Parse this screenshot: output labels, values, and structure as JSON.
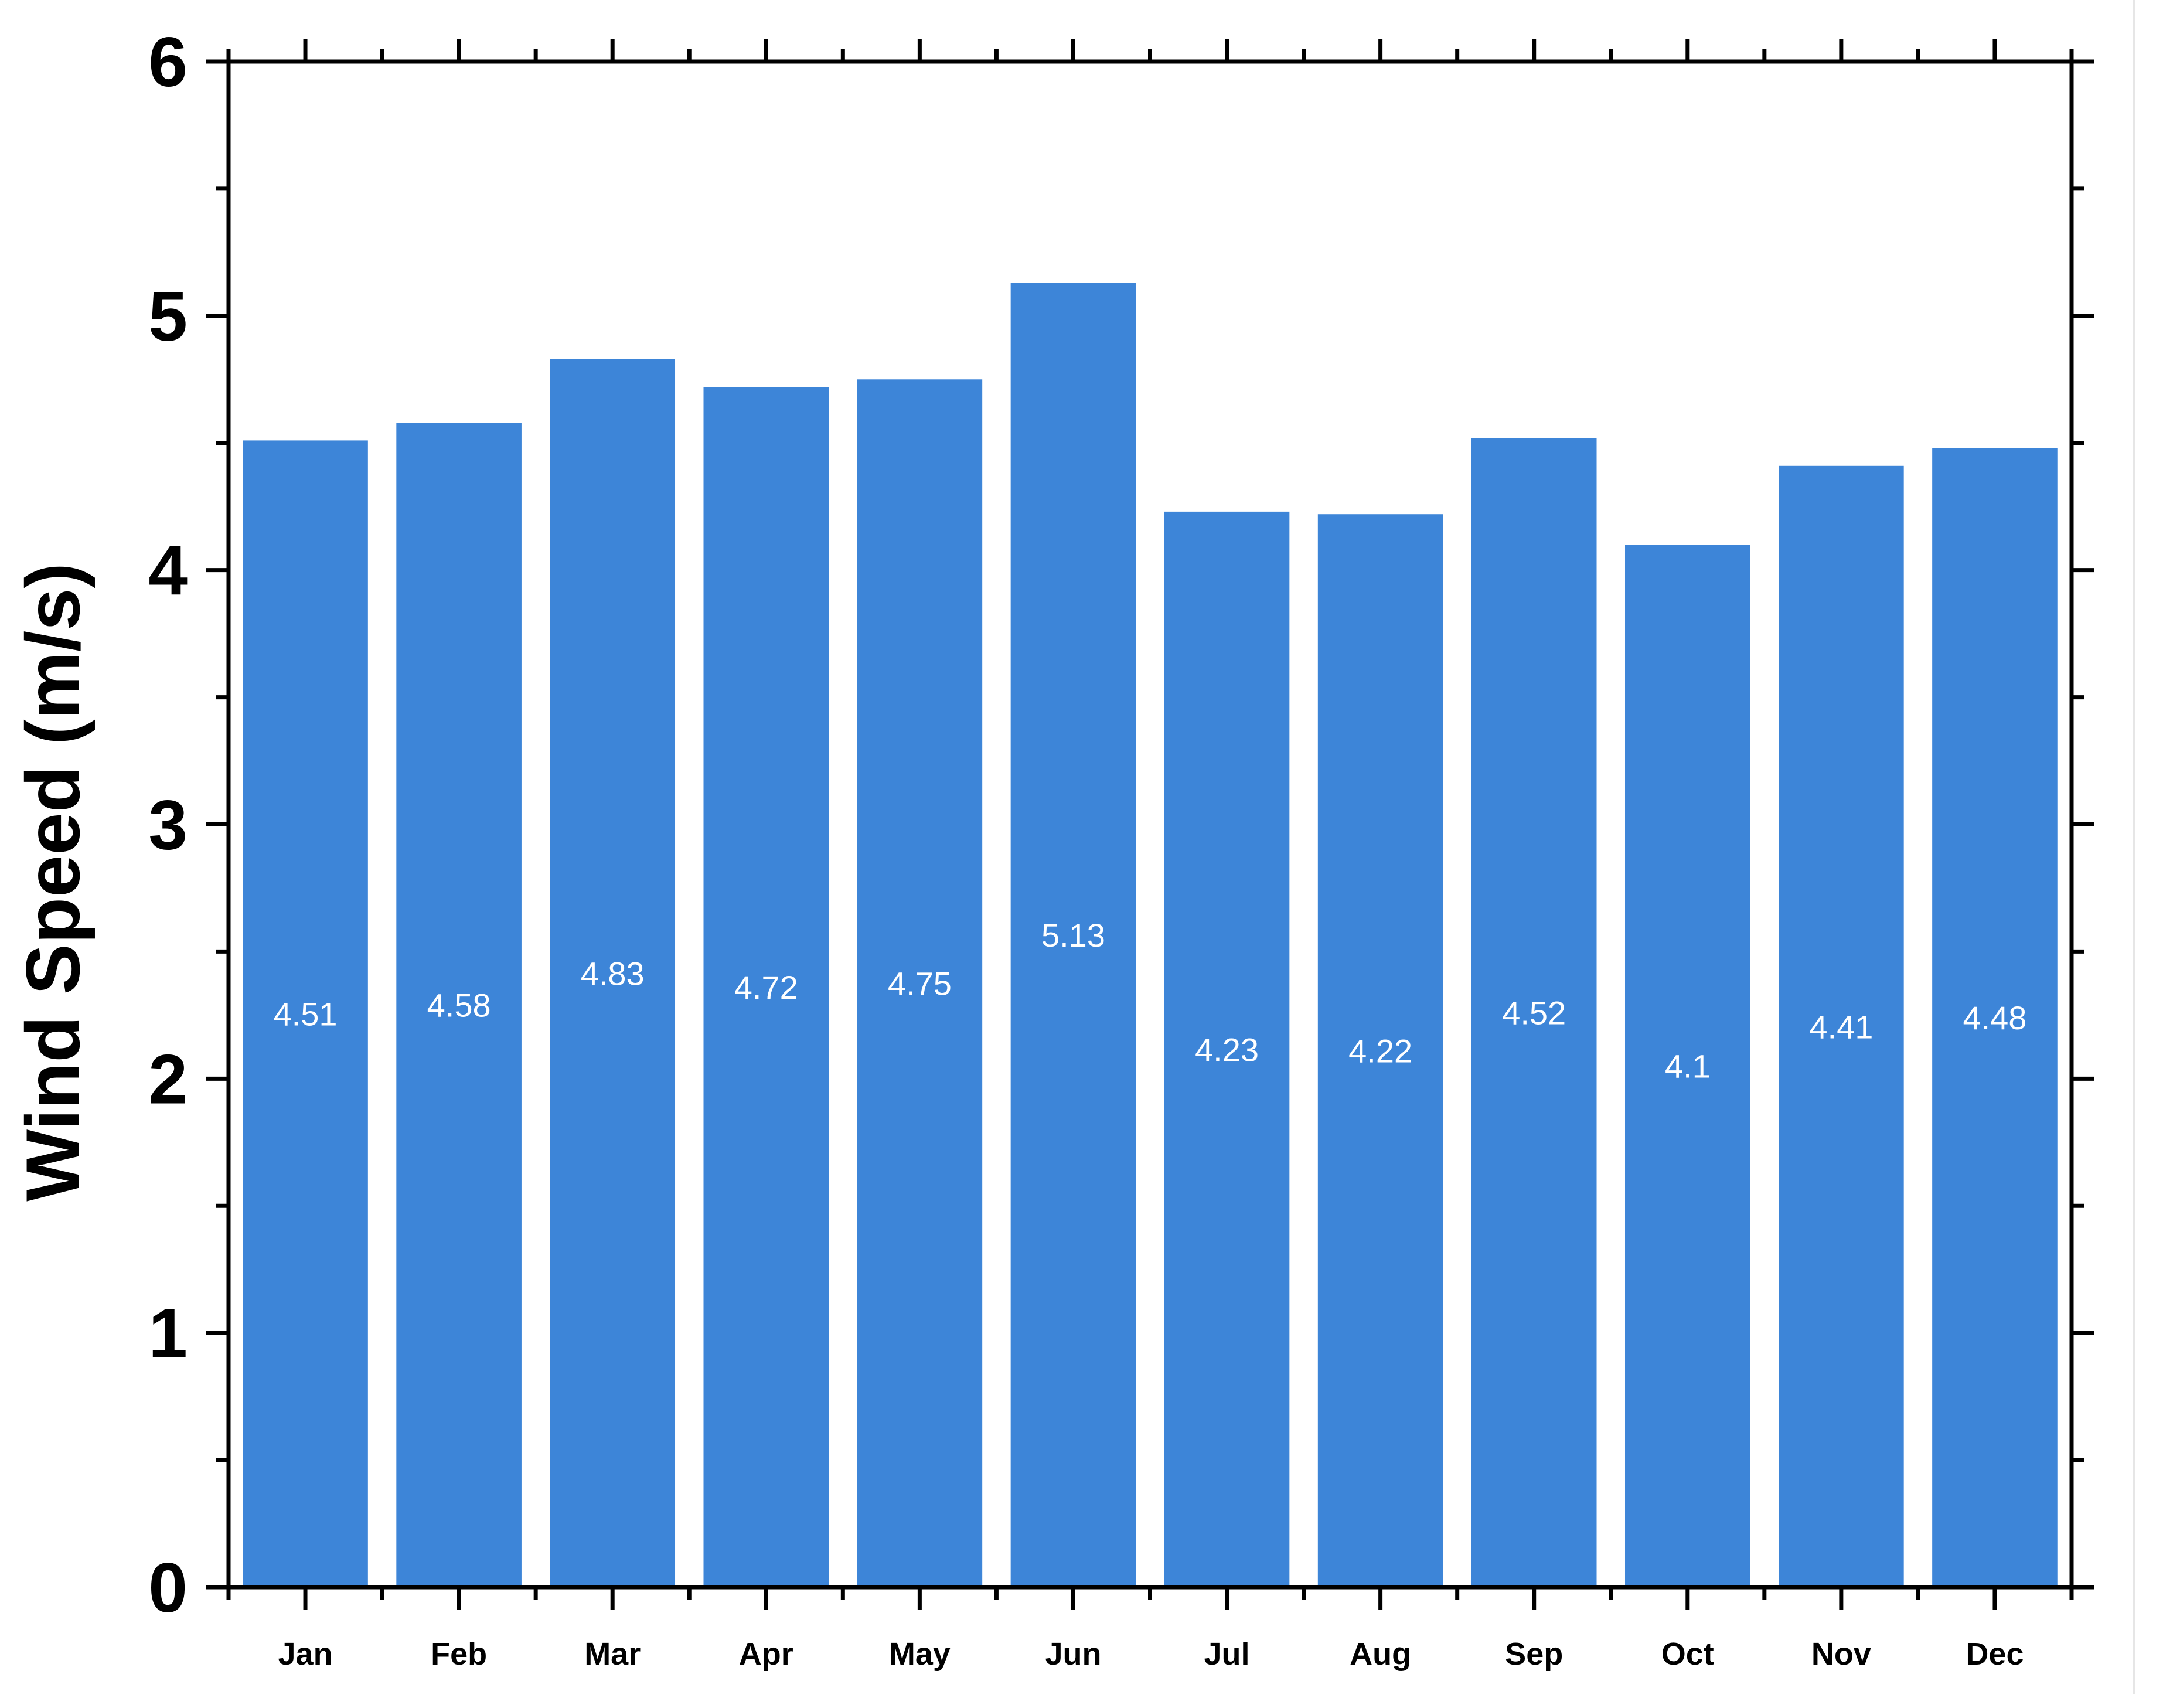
{
  "chart_data": {
    "type": "bar",
    "categories": [
      "Jan",
      "Feb",
      "Mar",
      "Apr",
      "May",
      "Jun",
      "Jul",
      "Aug",
      "Sep",
      "Oct",
      "Nov",
      "Dec"
    ],
    "values": [
      4.51,
      4.58,
      4.83,
      4.72,
      4.75,
      5.13,
      4.23,
      4.22,
      4.52,
      4.1,
      4.41,
      4.48
    ],
    "value_labels": [
      "4.51",
      "4.58",
      "4.83",
      "4.72",
      "4.75",
      "5.13",
      "4.23",
      "4.22",
      "4.52",
      "4.1",
      "4.41",
      "4.48"
    ],
    "title": "",
    "xlabel": "",
    "ylabel": "Wind Speed (m/s)",
    "ylim": [
      0,
      6
    ],
    "yticks": [
      0,
      1,
      2,
      3,
      4,
      5,
      6
    ],
    "ytick_labels": [
      "0",
      "1",
      "2",
      "3",
      "4",
      "5",
      "6"
    ],
    "grid": false,
    "legend": "none",
    "bar_color": "#3d85d8",
    "label_color": "#ffffff"
  }
}
